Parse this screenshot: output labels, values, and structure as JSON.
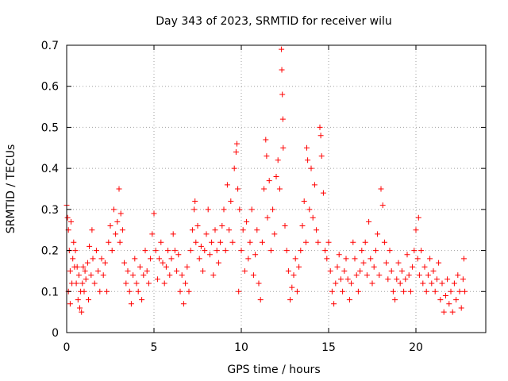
{
  "chart_data": {
    "type": "scatter",
    "title": "Day 343 of 2023, SRMTID for receiver wilu",
    "xlabel": "GPS time / hours",
    "ylabel": "SRMTID / TECUs",
    "xlim": [
      0,
      24
    ],
    "ylim": [
      0,
      0.7
    ],
    "xticks": [
      0,
      5,
      10,
      15,
      20
    ],
    "xtick_labels": [
      "0",
      "5",
      "10",
      "15",
      "20"
    ],
    "yticks": [
      0,
      0.1,
      0.2,
      0.3,
      0.4,
      0.5,
      0.6,
      0.7
    ],
    "ytick_labels": [
      "0",
      "0.1",
      "0.2",
      "0.3",
      "0.4",
      "0.5",
      "0.6",
      "0.7"
    ],
    "grid": true,
    "marker": "+",
    "color": "#ff0000",
    "series": [
      {
        "name": "SRMTID",
        "points": [
          [
            0.0,
            0.31
          ],
          [
            0.05,
            0.28
          ],
          [
            0.1,
            0.25
          ],
          [
            0.1,
            0.1
          ],
          [
            0.15,
            0.2
          ],
          [
            0.2,
            0.15
          ],
          [
            0.2,
            0.07
          ],
          [
            0.25,
            0.27
          ],
          [
            0.3,
            0.12
          ],
          [
            0.35,
            0.18
          ],
          [
            0.4,
            0.22
          ],
          [
            0.45,
            0.16
          ],
          [
            0.5,
            0.2
          ],
          [
            0.55,
            0.12
          ],
          [
            0.6,
            0.16
          ],
          [
            0.65,
            0.08
          ],
          [
            0.7,
            0.14
          ],
          [
            0.75,
            0.06
          ],
          [
            0.8,
            0.1
          ],
          [
            0.85,
            0.05
          ],
          [
            0.9,
            0.12
          ],
          [
            0.95,
            0.16
          ],
          [
            1.0,
            0.1
          ],
          [
            1.05,
            0.15
          ],
          [
            1.1,
            0.13
          ],
          [
            1.2,
            0.17
          ],
          [
            1.25,
            0.08
          ],
          [
            1.3,
            0.21
          ],
          [
            1.4,
            0.14
          ],
          [
            1.45,
            0.25
          ],
          [
            1.5,
            0.18
          ],
          [
            1.6,
            0.12
          ],
          [
            1.7,
            0.2
          ],
          [
            1.8,
            0.15
          ],
          [
            1.9,
            0.1
          ],
          [
            2.0,
            0.18
          ],
          [
            2.1,
            0.14
          ],
          [
            2.2,
            0.17
          ],
          [
            2.3,
            0.1
          ],
          [
            2.4,
            0.22
          ],
          [
            2.5,
            0.26
          ],
          [
            2.6,
            0.2
          ],
          [
            2.7,
            0.3
          ],
          [
            2.8,
            0.24
          ],
          [
            2.9,
            0.27
          ],
          [
            3.0,
            0.35
          ],
          [
            3.05,
            0.22
          ],
          [
            3.1,
            0.29
          ],
          [
            3.2,
            0.25
          ],
          [
            3.3,
            0.17
          ],
          [
            3.4,
            0.12
          ],
          [
            3.5,
            0.15
          ],
          [
            3.6,
            0.1
          ],
          [
            3.7,
            0.07
          ],
          [
            3.8,
            0.14
          ],
          [
            3.9,
            0.18
          ],
          [
            4.0,
            0.12
          ],
          [
            4.1,
            0.1
          ],
          [
            4.2,
            0.16
          ],
          [
            4.3,
            0.08
          ],
          [
            4.4,
            0.14
          ],
          [
            4.5,
            0.2
          ],
          [
            4.6,
            0.15
          ],
          [
            4.7,
            0.12
          ],
          [
            4.8,
            0.18
          ],
          [
            4.9,
            0.24
          ],
          [
            5.0,
            0.29
          ],
          [
            5.1,
            0.2
          ],
          [
            5.2,
            0.13
          ],
          [
            5.3,
            0.18
          ],
          [
            5.4,
            0.22
          ],
          [
            5.5,
            0.17
          ],
          [
            5.6,
            0.12
          ],
          [
            5.7,
            0.16
          ],
          [
            5.8,
            0.2
          ],
          [
            5.9,
            0.14
          ],
          [
            6.0,
            0.18
          ],
          [
            6.1,
            0.24
          ],
          [
            6.2,
            0.2
          ],
          [
            6.3,
            0.15
          ],
          [
            6.4,
            0.19
          ],
          [
            6.5,
            0.1
          ],
          [
            6.6,
            0.14
          ],
          [
            6.7,
            0.07
          ],
          [
            6.8,
            0.12
          ],
          [
            6.9,
            0.16
          ],
          [
            7.0,
            0.1
          ],
          [
            7.1,
            0.2
          ],
          [
            7.2,
            0.25
          ],
          [
            7.3,
            0.3
          ],
          [
            7.35,
            0.32
          ],
          [
            7.4,
            0.22
          ],
          [
            7.5,
            0.26
          ],
          [
            7.6,
            0.18
          ],
          [
            7.7,
            0.21
          ],
          [
            7.8,
            0.15
          ],
          [
            7.9,
            0.2
          ],
          [
            8.0,
            0.24
          ],
          [
            8.1,
            0.3
          ],
          [
            8.2,
            0.19
          ],
          [
            8.3,
            0.22
          ],
          [
            8.4,
            0.14
          ],
          [
            8.5,
            0.25
          ],
          [
            8.6,
            0.2
          ],
          [
            8.7,
            0.17
          ],
          [
            8.8,
            0.22
          ],
          [
            8.9,
            0.26
          ],
          [
            9.0,
            0.3
          ],
          [
            9.1,
            0.2
          ],
          [
            9.2,
            0.36
          ],
          [
            9.3,
            0.25
          ],
          [
            9.4,
            0.32
          ],
          [
            9.5,
            0.22
          ],
          [
            9.6,
            0.4
          ],
          [
            9.7,
            0.44
          ],
          [
            9.75,
            0.46
          ],
          [
            9.8,
            0.35
          ],
          [
            9.85,
            0.1
          ],
          [
            9.9,
            0.3
          ],
          [
            10.0,
            0.2
          ],
          [
            10.1,
            0.25
          ],
          [
            10.2,
            0.15
          ],
          [
            10.3,
            0.27
          ],
          [
            10.4,
            0.18
          ],
          [
            10.5,
            0.22
          ],
          [
            10.6,
            0.3
          ],
          [
            10.7,
            0.14
          ],
          [
            10.8,
            0.19
          ],
          [
            10.9,
            0.25
          ],
          [
            11.0,
            0.12
          ],
          [
            11.1,
            0.08
          ],
          [
            11.2,
            0.22
          ],
          [
            11.3,
            0.35
          ],
          [
            11.4,
            0.47
          ],
          [
            11.45,
            0.43
          ],
          [
            11.5,
            0.28
          ],
          [
            11.6,
            0.37
          ],
          [
            11.7,
            0.2
          ],
          [
            11.8,
            0.3
          ],
          [
            11.9,
            0.24
          ],
          [
            12.0,
            0.38
          ],
          [
            12.1,
            0.42
          ],
          [
            12.2,
            0.35
          ],
          [
            12.3,
            0.69
          ],
          [
            12.32,
            0.64
          ],
          [
            12.35,
            0.58
          ],
          [
            12.38,
            0.52
          ],
          [
            12.4,
            0.45
          ],
          [
            12.5,
            0.26
          ],
          [
            12.6,
            0.2
          ],
          [
            12.7,
            0.15
          ],
          [
            12.8,
            0.08
          ],
          [
            12.9,
            0.11
          ],
          [
            13.0,
            0.14
          ],
          [
            13.1,
            0.18
          ],
          [
            13.2,
            0.1
          ],
          [
            13.3,
            0.16
          ],
          [
            13.4,
            0.2
          ],
          [
            13.5,
            0.26
          ],
          [
            13.6,
            0.32
          ],
          [
            13.7,
            0.22
          ],
          [
            13.75,
            0.45
          ],
          [
            13.8,
            0.42
          ],
          [
            13.9,
            0.3
          ],
          [
            14.0,
            0.4
          ],
          [
            14.1,
            0.28
          ],
          [
            14.2,
            0.36
          ],
          [
            14.3,
            0.25
          ],
          [
            14.4,
            0.22
          ],
          [
            14.5,
            0.5
          ],
          [
            14.55,
            0.48
          ],
          [
            14.6,
            0.43
          ],
          [
            14.7,
            0.34
          ],
          [
            14.8,
            0.2
          ],
          [
            14.9,
            0.18
          ],
          [
            15.0,
            0.22
          ],
          [
            15.1,
            0.15
          ],
          [
            15.2,
            0.1
          ],
          [
            15.3,
            0.07
          ],
          [
            15.4,
            0.12
          ],
          [
            15.5,
            0.16
          ],
          [
            15.6,
            0.19
          ],
          [
            15.7,
            0.13
          ],
          [
            15.8,
            0.1
          ],
          [
            15.9,
            0.15
          ],
          [
            16.0,
            0.18
          ],
          [
            16.1,
            0.13
          ],
          [
            16.2,
            0.08
          ],
          [
            16.3,
            0.12
          ],
          [
            16.4,
            0.22
          ],
          [
            16.5,
            0.18
          ],
          [
            16.6,
            0.14
          ],
          [
            16.7,
            0.1
          ],
          [
            16.8,
            0.15
          ],
          [
            16.9,
            0.2
          ],
          [
            17.0,
            0.17
          ],
          [
            17.1,
            0.22
          ],
          [
            17.2,
            0.14
          ],
          [
            17.3,
            0.27
          ],
          [
            17.4,
            0.18
          ],
          [
            17.5,
            0.12
          ],
          [
            17.6,
            0.16
          ],
          [
            17.7,
            0.2
          ],
          [
            17.8,
            0.24
          ],
          [
            17.9,
            0.14
          ],
          [
            18.0,
            0.35
          ],
          [
            18.1,
            0.31
          ],
          [
            18.2,
            0.22
          ],
          [
            18.3,
            0.17
          ],
          [
            18.4,
            0.13
          ],
          [
            18.5,
            0.2
          ],
          [
            18.6,
            0.15
          ],
          [
            18.7,
            0.1
          ],
          [
            18.8,
            0.08
          ],
          [
            18.9,
            0.13
          ],
          [
            19.0,
            0.17
          ],
          [
            19.1,
            0.12
          ],
          [
            19.2,
            0.15
          ],
          [
            19.3,
            0.1
          ],
          [
            19.4,
            0.13
          ],
          [
            19.5,
            0.19
          ],
          [
            19.6,
            0.14
          ],
          [
            19.7,
            0.1
          ],
          [
            19.8,
            0.16
          ],
          [
            19.9,
            0.2
          ],
          [
            20.0,
            0.25
          ],
          [
            20.1,
            0.18
          ],
          [
            20.15,
            0.28
          ],
          [
            20.2,
            0.14
          ],
          [
            20.3,
            0.2
          ],
          [
            20.4,
            0.12
          ],
          [
            20.5,
            0.16
          ],
          [
            20.6,
            0.1
          ],
          [
            20.7,
            0.14
          ],
          [
            20.8,
            0.18
          ],
          [
            20.9,
            0.12
          ],
          [
            21.0,
            0.15
          ],
          [
            21.1,
            0.1
          ],
          [
            21.2,
            0.13
          ],
          [
            21.3,
            0.17
          ],
          [
            21.4,
            0.08
          ],
          [
            21.5,
            0.12
          ],
          [
            21.6,
            0.05
          ],
          [
            21.7,
            0.09
          ],
          [
            21.8,
            0.13
          ],
          [
            21.9,
            0.07
          ],
          [
            22.0,
            0.1
          ],
          [
            22.1,
            0.05
          ],
          [
            22.2,
            0.12
          ],
          [
            22.3,
            0.08
          ],
          [
            22.4,
            0.14
          ],
          [
            22.5,
            0.1
          ],
          [
            22.6,
            0.06
          ],
          [
            22.7,
            0.13
          ],
          [
            22.75,
            0.18
          ],
          [
            22.8,
            0.1
          ]
        ]
      }
    ]
  }
}
